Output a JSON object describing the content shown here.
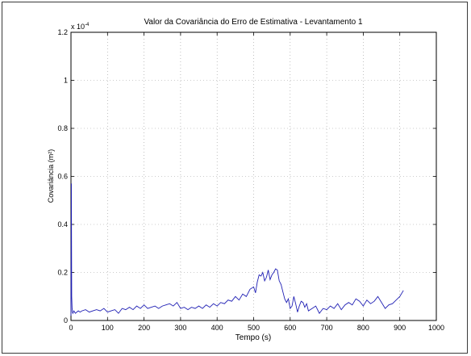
{
  "chart_data": {
    "type": "line",
    "title": "Valor da Covariância do Erro de Estimativa - Levantamento 1",
    "xlabel": "Tempo (s)",
    "ylabel": "Covariância (m²)",
    "y_multiplier_label": "x 10",
    "y_multiplier_exponent": "-4",
    "xlim": [
      0,
      1000
    ],
    "ylim": [
      0,
      1.2
    ],
    "x_ticks": [
      0,
      100,
      200,
      300,
      400,
      500,
      600,
      700,
      800,
      900,
      1000
    ],
    "x_tick_labels": [
      "0",
      "100",
      "200",
      "300",
      "400",
      "500",
      "600",
      "700",
      "800",
      "900",
      "1000"
    ],
    "y_ticks": [
      0,
      0.2,
      0.4,
      0.6,
      0.8,
      1,
      1.2
    ],
    "y_tick_labels": [
      "0",
      "0.2",
      "0.4",
      "0.6",
      "0.8",
      "1",
      "1.2"
    ],
    "grid": true,
    "series": [
      {
        "color": "#1f1fb4",
        "x": [
          0,
          1,
          2,
          3,
          4,
          5,
          8,
          12,
          16,
          20,
          25,
          30,
          40,
          50,
          60,
          70,
          80,
          90,
          100,
          110,
          120,
          130,
          140,
          150,
          160,
          170,
          180,
          190,
          200,
          210,
          220,
          230,
          240,
          250,
          260,
          270,
          280,
          290,
          300,
          310,
          320,
          330,
          340,
          350,
          360,
          370,
          380,
          390,
          400,
          410,
          420,
          430,
          440,
          450,
          460,
          470,
          480,
          490,
          500,
          505,
          510,
          515,
          520,
          525,
          530,
          535,
          540,
          545,
          550,
          555,
          560,
          565,
          570,
          575,
          580,
          585,
          590,
          595,
          600,
          605,
          610,
          615,
          620,
          625,
          630,
          635,
          640,
          645,
          650,
          660,
          670,
          680,
          690,
          700,
          710,
          720,
          730,
          740,
          750,
          760,
          770,
          780,
          790,
          800,
          810,
          820,
          830,
          840,
          850,
          860,
          870,
          880,
          890,
          900,
          910
        ],
        "y": [
          0.02,
          0.57,
          0.1,
          0.05,
          0.035,
          0.03,
          0.04,
          0.03,
          0.035,
          0.04,
          0.035,
          0.04,
          0.045,
          0.035,
          0.04,
          0.045,
          0.04,
          0.05,
          0.035,
          0.04,
          0.045,
          0.03,
          0.05,
          0.045,
          0.055,
          0.045,
          0.06,
          0.05,
          0.065,
          0.05,
          0.055,
          0.06,
          0.05,
          0.06,
          0.065,
          0.07,
          0.06,
          0.075,
          0.05,
          0.055,
          0.045,
          0.055,
          0.05,
          0.06,
          0.05,
          0.065,
          0.055,
          0.07,
          0.06,
          0.075,
          0.07,
          0.085,
          0.08,
          0.1,
          0.085,
          0.11,
          0.1,
          0.13,
          0.14,
          0.115,
          0.16,
          0.19,
          0.185,
          0.2,
          0.165,
          0.18,
          0.21,
          0.17,
          0.19,
          0.2,
          0.215,
          0.21,
          0.165,
          0.15,
          0.12,
          0.09,
          0.075,
          0.09,
          0.05,
          0.06,
          0.1,
          0.07,
          0.035,
          0.06,
          0.08,
          0.075,
          0.055,
          0.07,
          0.04,
          0.05,
          0.06,
          0.03,
          0.05,
          0.045,
          0.06,
          0.05,
          0.07,
          0.045,
          0.065,
          0.075,
          0.065,
          0.09,
          0.08,
          0.06,
          0.085,
          0.07,
          0.08,
          0.1,
          0.075,
          0.05,
          0.065,
          0.07,
          0.085,
          0.1,
          0.125
        ]
      }
    ]
  }
}
